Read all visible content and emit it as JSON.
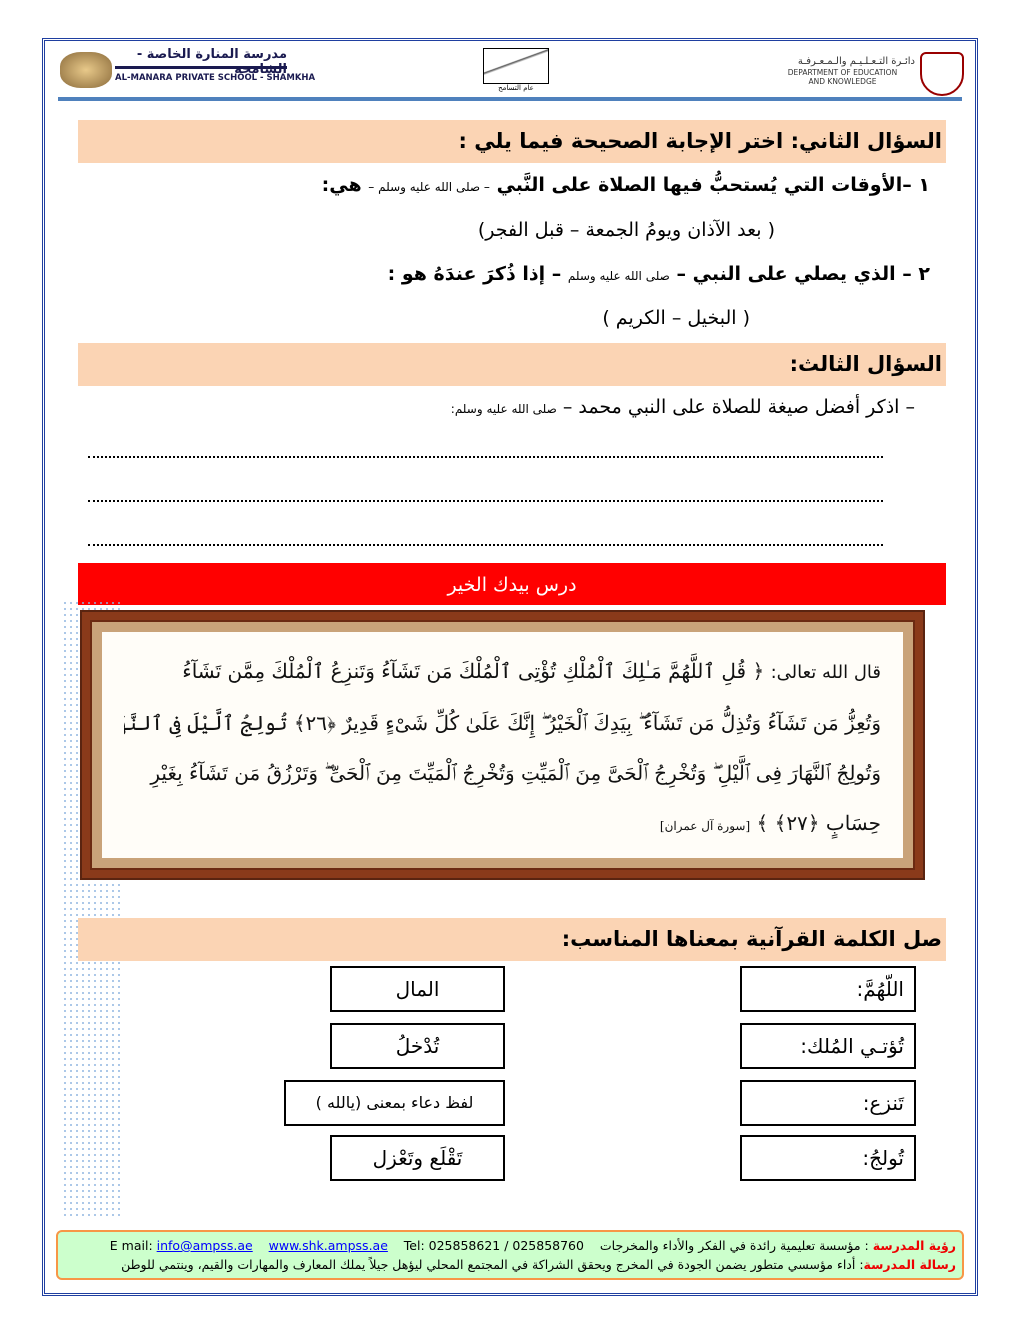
{
  "header": {
    "school_ar": "مدرسة المنارة الخاصة - الشامخة",
    "school_en": "AL-MANARA PRIVATE SCHOOL - SHAMKHA",
    "center_logo_text": "عام التسامح",
    "doe_ar": "دائـرة التـعـلـيـم والـمـعـرفـة",
    "doe_en_1": "DEPARTMENT OF EDUCATION",
    "doe_en_2": "AND KNOWLEDGE"
  },
  "q2": {
    "title": "السؤال الثاني: اختر الإجابة الصحيحة فيما يلي :",
    "item1": "١ –الأوقات التي يُستحبُّ فيها الصلاة على النَّبي",
    "item1_pbuh": "– صلى الله عليه وسلم –",
    "item1_end": "هي:",
    "item1_options": "( بعد الآذان ويومُ الجمعة – قبل الفجر)",
    "item2": "٢ – الذي يصلي على النبي –",
    "item2_pbuh": "صلى الله عليه وسلم",
    "item2_end": "– إذا ذُكرَ عندَهُ هو :",
    "item2_options": "( البخيل – الكريم )"
  },
  "q3": {
    "title": "السؤال الثالث:",
    "prompt": "–  اذكر  أفضل صيغة للصلاة على النبي محمد  –",
    "prompt_pbuh": "صلى الله عليه وسلم:"
  },
  "lesson_banner": "درس بيدك الخير",
  "quran": {
    "intro": "قال الله تعالى:",
    "line1": "﴿ قُلِ ٱللَّهُمَّ مَـٰلِكَ ٱلْمُلْكِ تُؤْتِى ٱلْمُلْكَ مَن تَشَآءُ وَتَنزِعُ ٱلْمُلْكَ مِمَّن تَشَآءُ",
    "line2": "وَتُعِزُّ مَن تَشَآءُ وَتُذِلُّ مَن تَشَآءُ ۖ بِيَدِكَ ٱلْخَيْرُ ۖ إِنَّكَ عَلَىٰ كُلِّ شَىْءٍ قَدِيرٌ ﴿٢٦﴾ تُولِجُ ٱلَّيْلَ فِى ٱلنَّهَارِ",
    "line3": "وَتُولِجُ ٱلنَّهَارَ فِى ٱلَّيْلِ ۖ وَتُخْرِجُ ٱلْحَىَّ مِنَ ٱلْمَيِّتِ وَتُخْرِجُ ٱلْمَيِّتَ مِنَ ٱلْحَىِّ ۖ وَتَرْزُقُ مَن تَشَآءُ بِغَيْرِ",
    "line4": "حِسَابٍ ﴿٢٧﴾ ﴾",
    "surah": "[سورة آل عمران]"
  },
  "match": {
    "title": "صل الكلمة القرآنية بمعناها المناسب:",
    "words": [
      "اللّهُمَّ:",
      "تُؤتـي المُلك:",
      "تَنزع:",
      "تُولجُ:"
    ],
    "meanings": [
      "المال",
      "تُدْخلُ",
      "لفظ دعاء بمعنى (يالله )",
      "تَقْلَع وتَعْزل"
    ]
  },
  "footer": {
    "vision_label": "رؤية المدرسة",
    "vision": " : مؤسسة تعليمية  رائدة في الفكر والأداء والمخرجات",
    "tel": "Tel: 025858621 / 025858760",
    "website": "www.shk.ampss.ae",
    "email_label": "E mail: ",
    "email": "info@ampss.ae",
    "mission_label": "رسالة المدرسة",
    "mission": ": أداء مؤسسي متطور يضمن الجودة في المخرج ويحقق الشراكة في المجتمع المحلي ليؤهل جيلاً يملك المعارف والمهارات والقيم، وينتمي للوطن"
  }
}
